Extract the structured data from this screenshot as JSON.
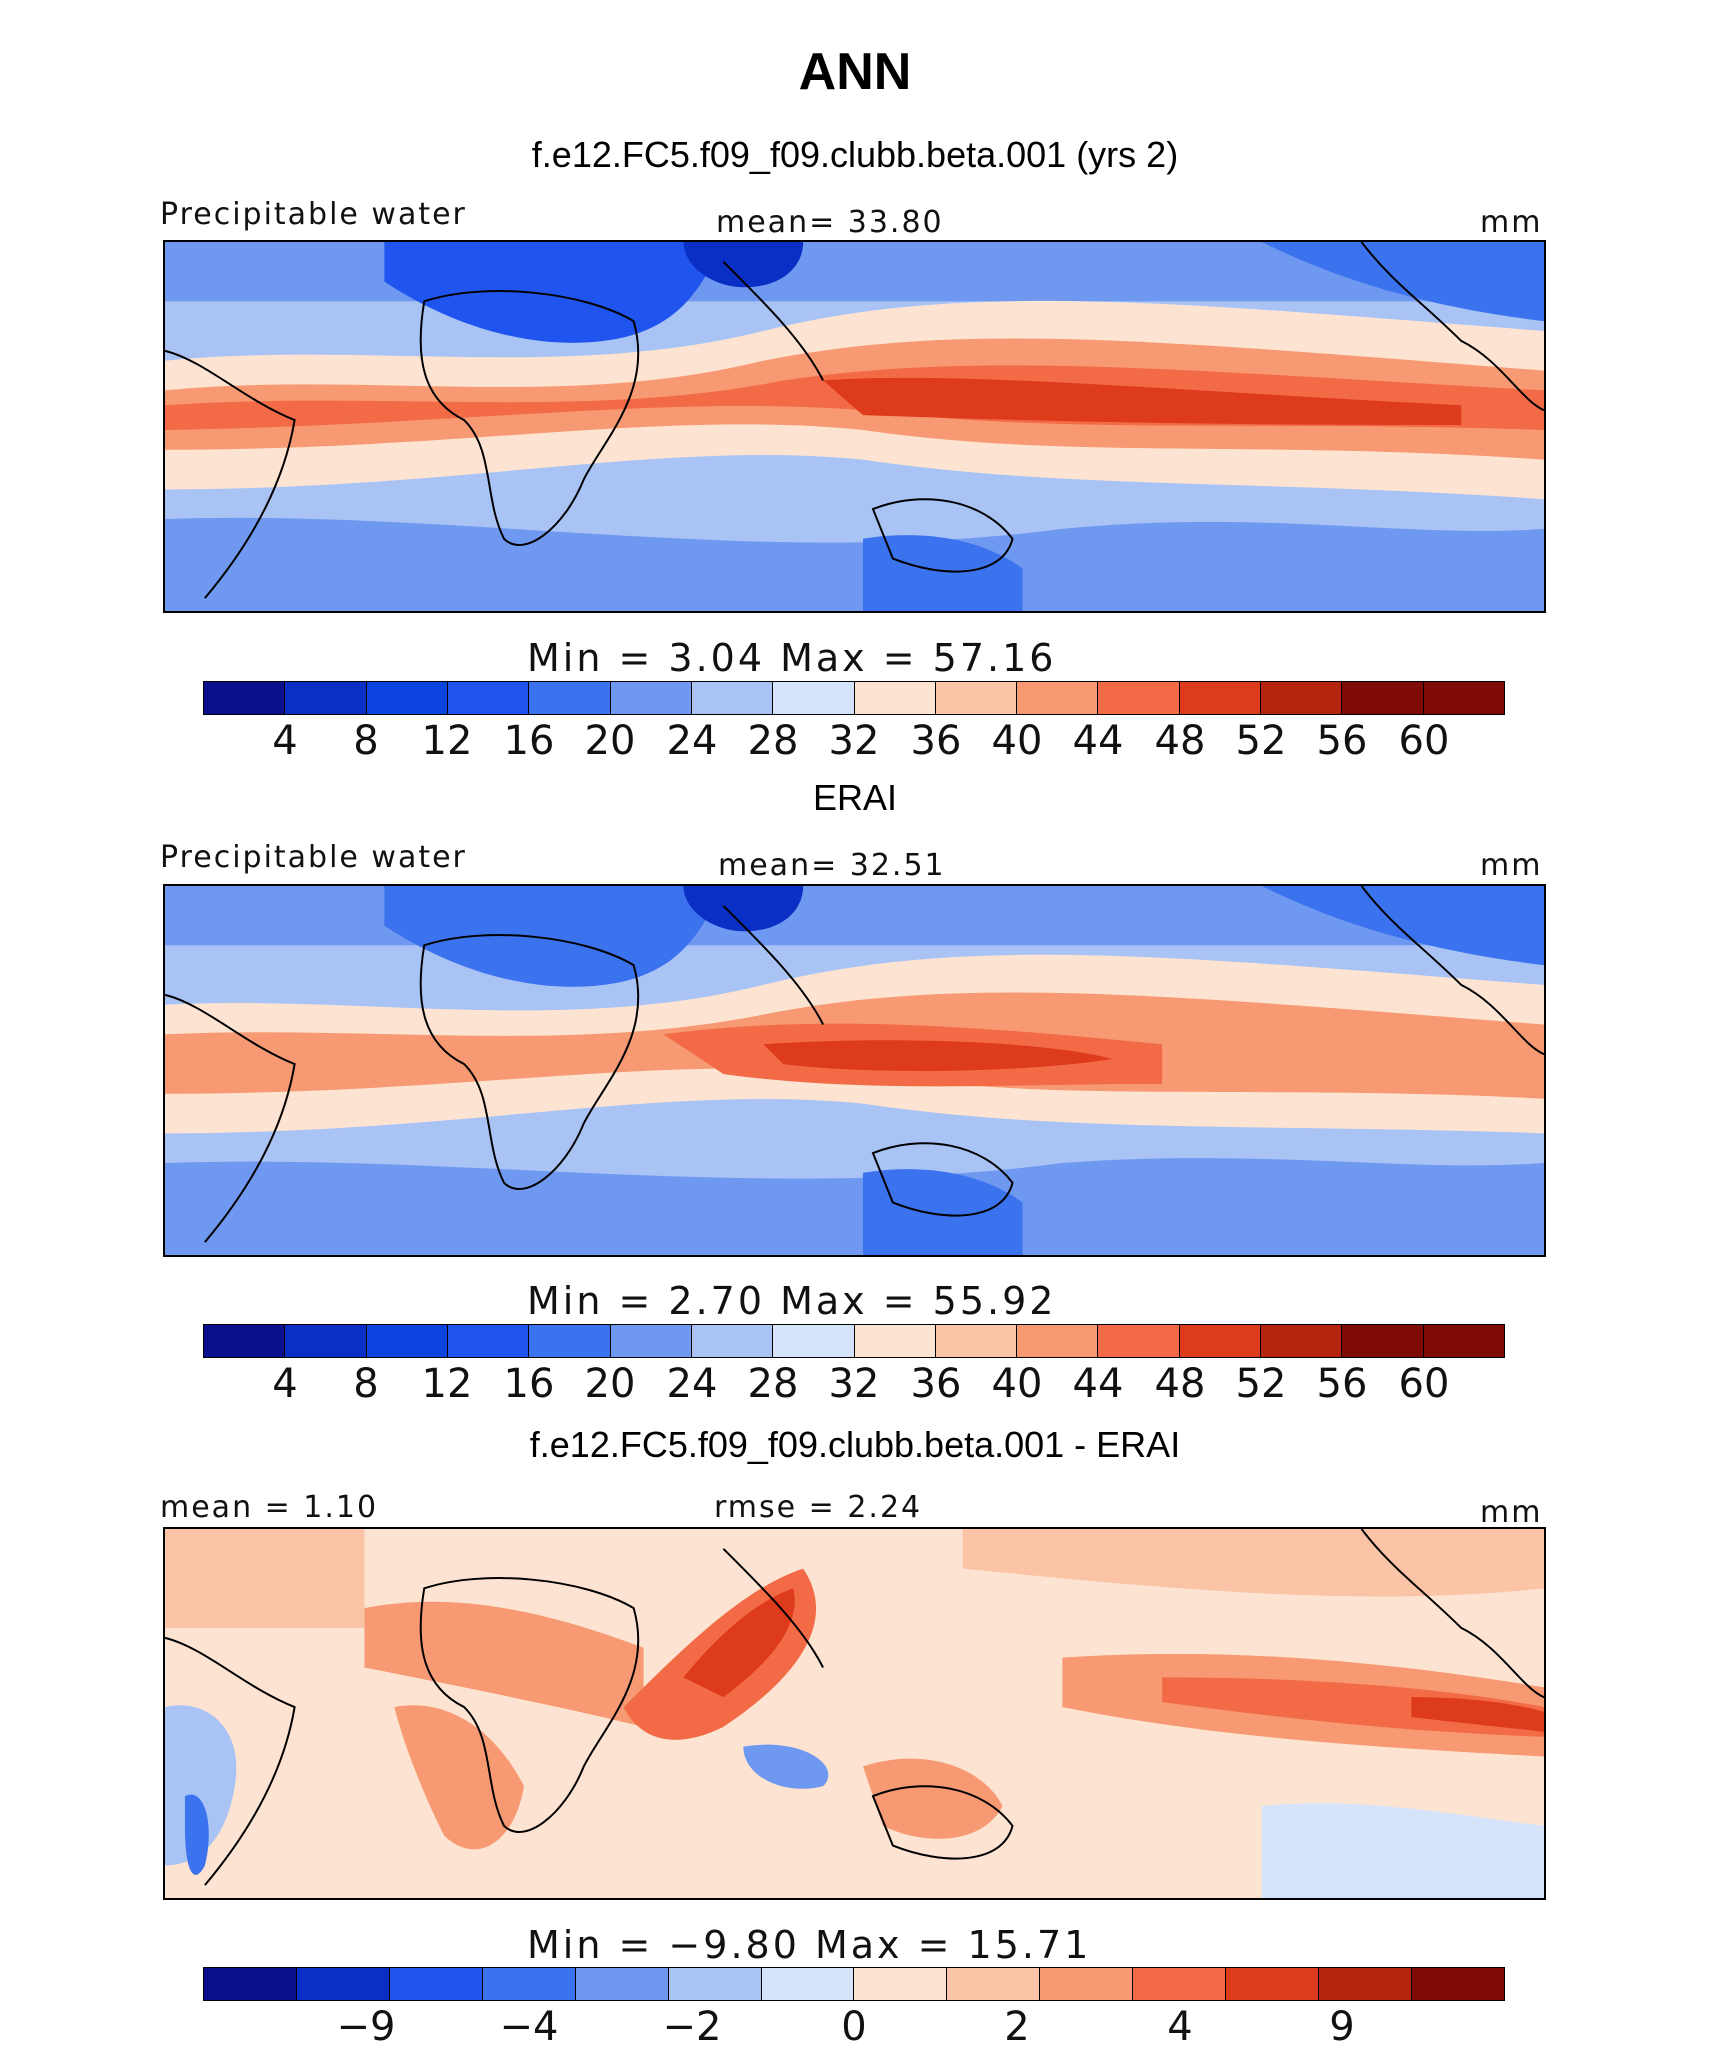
{
  "figure": {
    "title": "ANN"
  },
  "panels": [
    {
      "title": "f.e12.FC5.f09_f09.clubb.beta.001 (yrs 2)",
      "left_label": "Precipitable water",
      "center_label": "mean=   33.80",
      "units": "mm",
      "stats": "Min =    3.04 Max =   57.16",
      "colorbar_ticks": [
        "4",
        "8",
        "12",
        "16",
        "20",
        "24",
        "28",
        "32",
        "36",
        "40",
        "44",
        "48",
        "52",
        "56",
        "60"
      ]
    },
    {
      "title": "ERAI",
      "left_label": "Precipitable water",
      "center_label": "mean=   32.51",
      "units": "mm",
      "stats": "Min =    2.70 Max =   55.92",
      "colorbar_ticks": [
        "4",
        "8",
        "12",
        "16",
        "20",
        "24",
        "28",
        "32",
        "36",
        "40",
        "44",
        "48",
        "52",
        "56",
        "60"
      ]
    },
    {
      "title": "f.e12.FC5.f09_f09.clubb.beta.001 - ERAI",
      "left_label": "mean =    1.10",
      "center_label": "rmse =    2.24",
      "units": "mm",
      "stats": "Min =   −9.80 Max =   15.71",
      "colorbar_ticks": [
        "−9",
        "−4",
        "−2",
        "0",
        "2",
        "4",
        "9"
      ]
    }
  ],
  "colors": {
    "abs_palette": [
      "#0a0f8c",
      "#0a2fc4",
      "#0c44e0",
      "#1f55ee",
      "#3b72ee",
      "#6f98f0",
      "#a9c3f5",
      "#d6e4fb",
      "#fde4d2",
      "#fbc4a6",
      "#f79a74",
      "#f26b46",
      "#de3a1c",
      "#b5240f",
      "#7e0b06"
    ],
    "diff_palette": [
      "#0a0f8c",
      "#0a2fc4",
      "#1f55ee",
      "#3b72ee",
      "#6f98f0",
      "#a9c3f5",
      "#d6e4fb",
      "#fde4d2",
      "#fbc4a6",
      "#f79a74",
      "#f26b46",
      "#de3a1c",
      "#b5240f",
      "#7e0b06"
    ]
  }
}
